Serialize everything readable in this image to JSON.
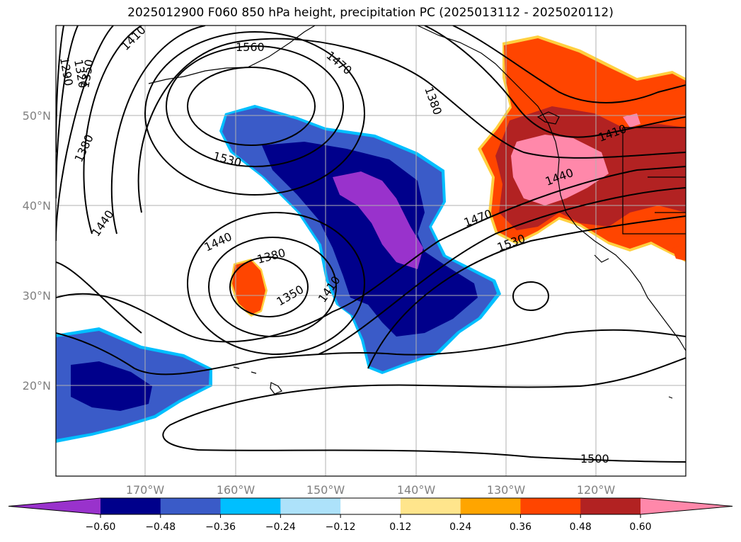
{
  "title": "2025012900 F060 850 hPa height, precipitation PC (2025013112 - 2025020112)",
  "lat_ticks": [
    "50°N",
    "40°N",
    "30°N",
    "20°N"
  ],
  "lon_ticks": [
    "170°W",
    "160°W",
    "150°W",
    "140°W",
    "130°W",
    "120°W"
  ],
  "colorbar": {
    "colors": [
      "#9932cc",
      "#00008b",
      "#3a5bc8",
      "#00bfff",
      "#ade2fa",
      "#ffffff",
      "#ffe58c",
      "#ffa500",
      "#ff4500",
      "#b22222",
      "#ff88aa"
    ],
    "ticks": [
      "−0.60",
      "−0.48",
      "−0.36",
      "−0.24",
      "−0.12",
      "0.12",
      "0.24",
      "0.36",
      "0.48",
      "0.60"
    ]
  },
  "contour_labels": [
    "1410",
    "1560",
    "1470",
    "1380",
    "1290",
    "1320",
    "1350",
    "1380",
    "1530",
    "1440",
    "1440",
    "1380",
    "1350",
    "1410",
    "1470",
    "1530",
    "1410",
    "1440",
    "1500"
  ]
}
